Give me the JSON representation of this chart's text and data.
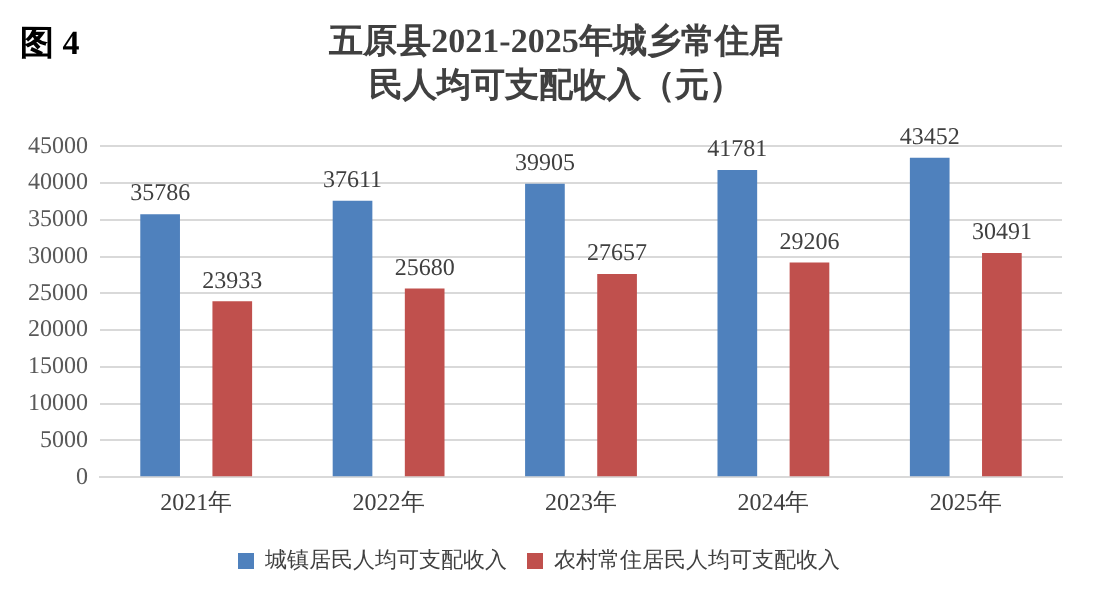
{
  "chart_data": {
    "type": "bar",
    "title": "五原县2021-2025年城乡常住居民人均可支配收入（元）",
    "annotations": [
      "图 4"
    ],
    "categories": [
      "2021年",
      "2022年",
      "2023年",
      "2024年",
      "2025年"
    ],
    "series": [
      {
        "name": "城镇居民人均可支配收入",
        "color": "#4f81bd",
        "values": [
          35786,
          37611,
          39905,
          41781,
          43452
        ]
      },
      {
        "name": "农村常住居民人均可支配收入",
        "color": "#c0504d",
        "values": [
          23933,
          25680,
          27657,
          29206,
          30491
        ]
      }
    ],
    "ylim": [
      0,
      45000
    ],
    "yticks": [
      0,
      5000,
      10000,
      15000,
      20000,
      25000,
      30000,
      35000,
      40000,
      45000
    ],
    "grid": "y",
    "legend": "bottom",
    "data_labels": true
  }
}
